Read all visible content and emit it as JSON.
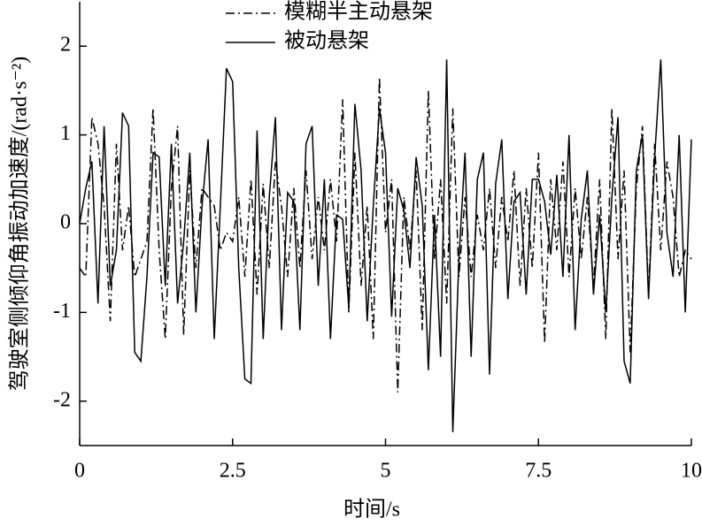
{
  "chart_data": {
    "type": "line",
    "x_label": "时间/s",
    "y_label": "驾驶室侧倾仰角振动加速度/(rad·s⁻²)",
    "legend": "top",
    "grid": false,
    "xlim": [
      0,
      10
    ],
    "ylim": [
      -2.5,
      2.5
    ],
    "xticks": [
      0,
      2.5,
      5,
      7.5,
      10
    ],
    "yticks": [
      -2,
      -1,
      0,
      1,
      2
    ],
    "x": [
      0,
      0.1,
      0.2,
      0.3,
      0.4,
      0.5,
      0.6,
      0.7,
      0.8,
      0.9,
      1,
      1.1,
      1.2,
      1.3,
      1.4,
      1.5,
      1.6,
      1.7,
      1.8,
      1.9,
      2,
      2.1,
      2.2,
      2.3,
      2.4,
      2.5,
      2.6,
      2.7,
      2.8,
      2.9,
      3,
      3.1,
      3.2,
      3.3,
      3.4,
      3.5,
      3.6,
      3.7,
      3.8,
      3.9,
      4,
      4.1,
      4.2,
      4.3,
      4.4,
      4.5,
      4.6,
      4.7,
      4.8,
      4.9,
      5,
      5.1,
      5.2,
      5.3,
      5.4,
      5.5,
      5.6,
      5.7,
      5.8,
      5.9,
      6,
      6.1,
      6.2,
      6.3,
      6.4,
      6.5,
      6.6,
      6.7,
      6.8,
      6.9,
      7,
      7.1,
      7.2,
      7.3,
      7.4,
      7.5,
      7.6,
      7.7,
      7.8,
      7.9,
      8,
      8.1,
      8.2,
      8.3,
      8.4,
      8.5,
      8.6,
      8.7,
      8.8,
      8.9,
      9,
      9.1,
      9.2,
      9.3,
      9.4,
      9.5,
      9.6,
      9.7,
      9.8,
      9.9,
      10
    ],
    "series": [
      {
        "name": "模糊半主动悬架",
        "color": "#000000",
        "dash": "10 4 2 4",
        "values": [
          -0.5,
          -0.6,
          1.2,
          0.9,
          0.2,
          -1.1,
          0.9,
          -0.3,
          0.2,
          -0.6,
          -0.4,
          -0.2,
          1.3,
          -0.3,
          -1.3,
          0.4,
          1.1,
          -1.25,
          0.6,
          -0.5,
          0.4,
          0.3,
          0.2,
          -0.3,
          -0.1,
          -0.2,
          0.3,
          -0.6,
          0.5,
          -0.8,
          0.45,
          -0.5,
          0.7,
          0.2,
          -0.6,
          0.4,
          -0.5,
          0.6,
          -0.4,
          0.3,
          -0.3,
          0.5,
          -0.2,
          1.4,
          -1.0,
          0.8,
          -0.7,
          0.2,
          -1.3,
          1.65,
          -0.1,
          0.5,
          -1.9,
          0.3,
          -0.3,
          0.6,
          -1.2,
          1.5,
          -0.4,
          0.5,
          -0.9,
          1.3,
          -0.6,
          0.3,
          -0.6,
          0.1,
          -0.3,
          0.4,
          -0.5,
          0.3,
          -0.2,
          0.6,
          -0.7,
          0.4,
          -0.5,
          0.8,
          -1.35,
          0.5,
          -0.3,
          0.7,
          -0.6,
          0.4,
          -0.4,
          0.3,
          -0.7,
          0.5,
          -1.3,
          1.3,
          -0.4,
          0.6,
          -1.45,
          0.4,
          1.1,
          -0.8,
          0.9,
          -0.3,
          0.7,
          0.3,
          -0.6,
          -0.3,
          -0.4
        ]
      },
      {
        "name": "被动悬架",
        "color": "#000000",
        "dash": "none",
        "values": [
          0,
          0.4,
          0.7,
          -0.9,
          1.1,
          -0.7,
          -0.3,
          1.25,
          1.1,
          -1.45,
          -1.55,
          -0.6,
          0.8,
          0.75,
          -0.7,
          0.9,
          -0.9,
          -0.2,
          0.8,
          -1.0,
          0.2,
          0.95,
          -1.3,
          0.2,
          1.75,
          1.6,
          -0.5,
          -1.75,
          -1.8,
          1.05,
          -1.3,
          0.3,
          1.2,
          -1.2,
          0.35,
          0.25,
          -1.2,
          0.9,
          1.1,
          -0.7,
          0.5,
          -1.3,
          0.1,
          0.05,
          -0.95,
          1.35,
          0.6,
          -1.1,
          0.2,
          1.3,
          0.8,
          -1.05,
          0.4,
          0.15,
          -0.5,
          0.75,
          0.2,
          -1.65,
          0.1,
          -1.5,
          1.85,
          -2.35,
          -0.4,
          0.8,
          -1.5,
          0.5,
          0.8,
          -1.7,
          0.45,
          0.95,
          -0.85,
          0.25,
          0.35,
          -0.8,
          0.5,
          0.5,
          0.25,
          -0.35,
          0.55,
          -0.6,
          1.0,
          -1.2,
          0.05,
          0.6,
          -0.8,
          0.1,
          -1.0,
          0.3,
          1.2,
          -1.55,
          -1.8,
          0.6,
          1.0,
          -0.85,
          0.75,
          1.85,
          -0.1,
          -0.6,
          1.0,
          -1.0,
          0.95
        ]
      }
    ]
  }
}
